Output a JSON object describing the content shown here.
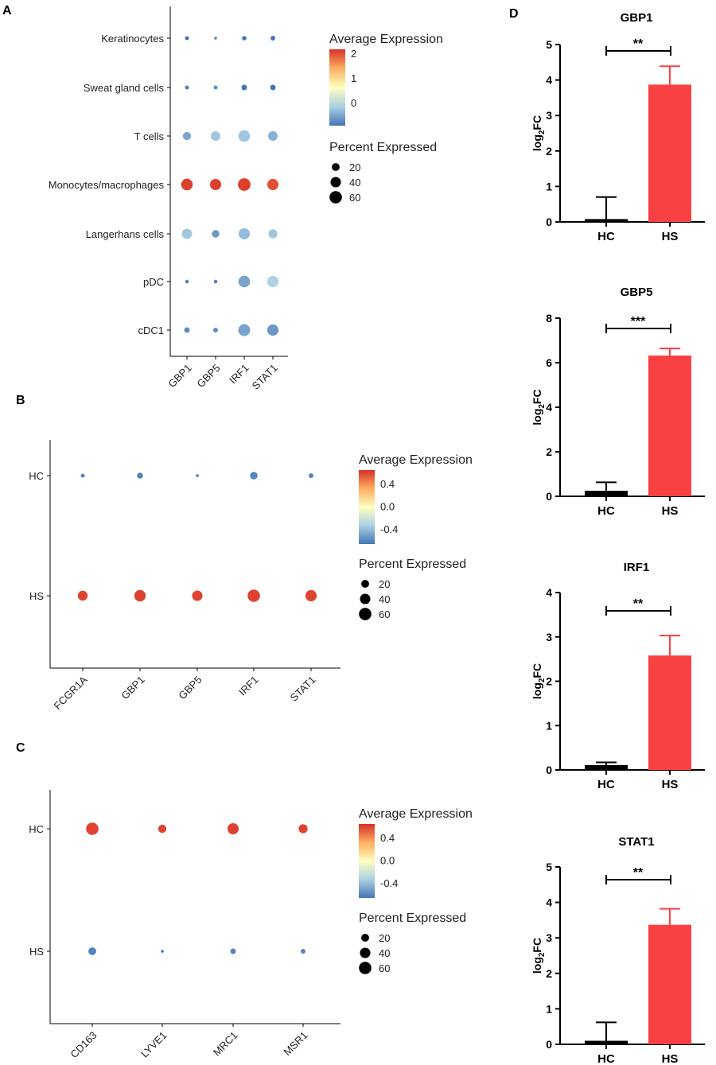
{
  "panels": {
    "a": "A",
    "b": "B",
    "c": "C",
    "d": "D"
  },
  "colors": {
    "high": "#d73027",
    "mid": "#ffffbf",
    "low": "#4575b4",
    "hs_bar": "#f94144",
    "hc_bar": "#000000"
  },
  "chart_data": [
    {
      "type": "dotplot",
      "id": "A",
      "rows": [
        "Keratinocytes",
        "Sweat gland cells",
        "T cells",
        "Monocytes/macrophages",
        "Langerhans cells",
        "pDC",
        "cDC1"
      ],
      "columns": [
        "GBP1",
        "GBP5",
        "IRF1",
        "STAT1"
      ],
      "expression": [
        [
          -0.9,
          -0.7,
          -1.0,
          -0.9
        ],
        [
          -0.8,
          -0.7,
          -1.1,
          -1.2
        ],
        [
          -0.5,
          -0.2,
          -0.2,
          -0.4
        ],
        [
          2.1,
          2.1,
          2.1,
          2.0
        ],
        [
          -0.2,
          -0.6,
          -0.3,
          -0.2
        ],
        [
          -0.8,
          -0.8,
          -0.5,
          -0.1
        ],
        [
          -0.7,
          -0.7,
          -0.5,
          -0.6
        ]
      ],
      "percent": [
        [
          3,
          1,
          4,
          5
        ],
        [
          3,
          3,
          8,
          8
        ],
        [
          22,
          33,
          52,
          32
        ],
        [
          52,
          47,
          62,
          48
        ],
        [
          38,
          18,
          47,
          28
        ],
        [
          2,
          2,
          52,
          48
        ],
        [
          8,
          5,
          55,
          48
        ]
      ],
      "legend": {
        "color_title": "Average Expression",
        "color_ticks": [
          "2",
          "1",
          "0"
        ],
        "color_tick_values": [
          2,
          1,
          0
        ],
        "color_range": [
          -0.9,
          2.2
        ],
        "size_title": "Percent Expressed",
        "size_ticks": [
          "20",
          "40",
          "60"
        ]
      }
    },
    {
      "type": "dotplot",
      "id": "B",
      "rows": [
        "HC",
        "HS"
      ],
      "columns": [
        "FCGR1A",
        "GBP1",
        "GBP5",
        "IRF1",
        "STAT1"
      ],
      "expression": [
        [
          -0.6,
          -0.6,
          -0.6,
          -0.6,
          -0.6
        ],
        [
          0.6,
          0.6,
          0.6,
          0.6,
          0.6
        ]
      ],
      "percent": [
        [
          3,
          10,
          1,
          18,
          5
        ],
        [
          35,
          50,
          40,
          60,
          48
        ]
      ],
      "legend": {
        "color_title": "Average Expression",
        "color_ticks": [
          "0.4",
          "0.0",
          "-0.4"
        ],
        "color_tick_values": [
          0.4,
          0.0,
          -0.4
        ],
        "color_range": [
          -0.65,
          0.65
        ],
        "size_title": "Percent Expressed",
        "size_ticks": [
          "20",
          "40",
          "60"
        ]
      }
    },
    {
      "type": "dotplot",
      "id": "C",
      "rows": [
        "HC",
        "HS"
      ],
      "columns": [
        "CD163",
        "LYVE1",
        "MRC1",
        "MSR1"
      ],
      "expression": [
        [
          0.6,
          0.6,
          0.6,
          0.6
        ],
        [
          -0.6,
          -0.6,
          -0.6,
          -0.6
        ]
      ],
      "percent": [
        [
          60,
          22,
          47,
          28
        ],
        [
          20,
          1,
          8,
          5
        ]
      ],
      "legend": {
        "color_title": "Average Expression",
        "color_ticks": [
          "0.4",
          "0.0",
          "-0.4"
        ],
        "color_tick_values": [
          0.4,
          0.0,
          -0.4
        ],
        "color_range": [
          -0.65,
          0.65
        ],
        "size_title": "Percent Expressed",
        "size_ticks": [
          "20",
          "40",
          "60"
        ]
      }
    },
    {
      "type": "bar",
      "id": "D1",
      "title": "GBP1",
      "ylabel_base": "log",
      "ylabel_sub": "2",
      "ylabel_tail": "FC",
      "categories": [
        "HC",
        "HS"
      ],
      "values": [
        0.08,
        3.87
      ],
      "errors": [
        0.62,
        0.52
      ],
      "ylim": [
        0,
        5
      ],
      "yticks": [
        "0",
        "1",
        "2",
        "3",
        "4",
        "5"
      ],
      "significance": "**"
    },
    {
      "type": "bar",
      "id": "D2",
      "title": "GBP5",
      "ylabel_base": "log",
      "ylabel_sub": "2",
      "ylabel_tail": "FC",
      "categories": [
        "HC",
        "HS"
      ],
      "values": [
        0.25,
        6.32
      ],
      "errors": [
        0.38,
        0.32
      ],
      "ylim": [
        0,
        8
      ],
      "yticks": [
        "0",
        "2",
        "4",
        "6",
        "8"
      ],
      "significance": "***"
    },
    {
      "type": "bar",
      "id": "D3",
      "title": "IRF1",
      "ylabel_base": "log",
      "ylabel_sub": "2",
      "ylabel_tail": "FC",
      "categories": [
        "HC",
        "HS"
      ],
      "values": [
        0.11,
        2.58
      ],
      "errors": [
        0.06,
        0.45
      ],
      "ylim": [
        0,
        4
      ],
      "yticks": [
        "0",
        "1",
        "2",
        "3",
        "4"
      ],
      "significance": "**"
    },
    {
      "type": "bar",
      "id": "D4",
      "title": "STAT1",
      "ylabel_base": "log",
      "ylabel_sub": "2",
      "ylabel_tail": "FC",
      "categories": [
        "HC",
        "HS"
      ],
      "values": [
        0.1,
        3.37
      ],
      "errors": [
        0.52,
        0.45
      ],
      "ylim": [
        0,
        5
      ],
      "yticks": [
        "0",
        "1",
        "2",
        "3",
        "4",
        "5"
      ],
      "significance": "**"
    }
  ]
}
